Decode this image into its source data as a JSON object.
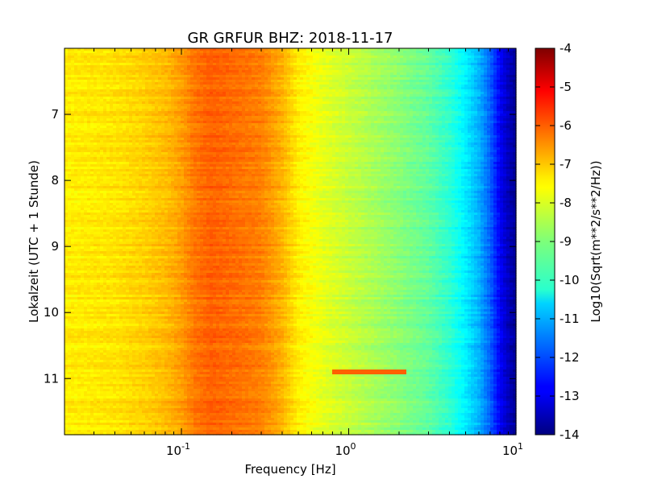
{
  "chart_data": {
    "type": "heatmap",
    "title": "GR GRFUR BHZ: 2018-11-17",
    "xlabel": "Frequency [Hz]",
    "ylabel": "Lokalzeit (UTC + 1 Stunde)",
    "xscale": "log",
    "xlim": [
      0.02,
      10
    ],
    "ylim": [
      6.0,
      11.85
    ],
    "y_inverted": true,
    "x_ticks": [
      {
        "value": 0.1,
        "base": "10",
        "exp": "-1"
      },
      {
        "value": 1,
        "base": "10",
        "exp": "0"
      },
      {
        "value": 10,
        "base": "10",
        "exp": "1"
      }
    ],
    "y_ticks": [
      {
        "value": 7,
        "label": "7"
      },
      {
        "value": 8,
        "label": "8"
      },
      {
        "value": 9,
        "label": "9"
      },
      {
        "value": 10,
        "label": "10"
      },
      {
        "value": 11,
        "label": "11"
      }
    ],
    "colorbar": {
      "label": "Log10(Sqrt(m**2/s**2/Hz))",
      "range": [
        -14,
        -4
      ],
      "colormap": "jet",
      "ticks": [
        "-4",
        "-5",
        "-6",
        "-7",
        "-8",
        "-9",
        "-10",
        "-11",
        "-12",
        "-13",
        "-14"
      ]
    },
    "spectrum_profile": [
      {
        "f": 0.02,
        "v": -7.6
      },
      {
        "f": 0.04,
        "v": -7.5
      },
      {
        "f": 0.06,
        "v": -7.3
      },
      {
        "f": 0.08,
        "v": -7.1
      },
      {
        "f": 0.1,
        "v": -6.8
      },
      {
        "f": 0.12,
        "v": -6.4
      },
      {
        "f": 0.15,
        "v": -6.2
      },
      {
        "f": 0.2,
        "v": -6.3
      },
      {
        "f": 0.3,
        "v": -6.5
      },
      {
        "f": 0.4,
        "v": -7.0
      },
      {
        "f": 0.5,
        "v": -7.6
      },
      {
        "f": 0.7,
        "v": -8.0
      },
      {
        "f": 1.0,
        "v": -8.3
      },
      {
        "f": 2.0,
        "v": -8.9
      },
      {
        "f": 3.0,
        "v": -9.3
      },
      {
        "f": 4.0,
        "v": -9.8
      },
      {
        "f": 5.0,
        "v": -10.4
      },
      {
        "f": 6.0,
        "v": -11.0
      },
      {
        "f": 7.0,
        "v": -11.8
      },
      {
        "f": 8.0,
        "v": -12.8
      },
      {
        "f": 9.0,
        "v": -13.4
      },
      {
        "f": 10.0,
        "v": -13.8
      }
    ],
    "features": [
      {
        "type": "narrowband_line",
        "time": 10.88,
        "f_from": 0.8,
        "f_to": 2.2,
        "value": -6.2
      }
    ]
  }
}
